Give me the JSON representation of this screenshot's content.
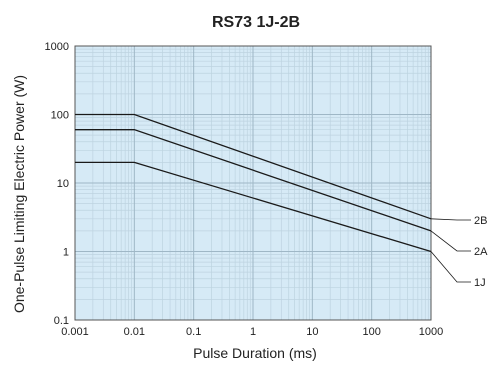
{
  "chart_data": {
    "type": "line",
    "title": "RS73 1J-2B",
    "xlabel": "Pulse Duration (ms)",
    "ylabel": "One-Pulse Limiting Electric Power (W)",
    "x_scale": "log",
    "y_scale": "log",
    "xlim": [
      0.001,
      1000
    ],
    "ylim": [
      0.1,
      1000
    ],
    "x_ticks": [
      0.001,
      0.01,
      0.1,
      1,
      10,
      100,
      1000
    ],
    "x_tick_labels": [
      "0.001",
      "0.01",
      "0.1",
      "1",
      "10",
      "100",
      "1000"
    ],
    "y_ticks": [
      0.1,
      1,
      10,
      100,
      1000
    ],
    "y_tick_labels": [
      "0.1",
      "1",
      "10",
      "100",
      "1000"
    ],
    "grid": true,
    "legend": "callout-right",
    "colors": {
      "plot_background": "#d6eaf6",
      "grid_major": "#9fb7c6",
      "grid_minor": "#bdd3e0",
      "series_line": "#1a1a1a",
      "axes": "#555555"
    },
    "series": [
      {
        "name": "2B",
        "x": [
          0.001,
          0.01,
          1000
        ],
        "y": [
          100,
          100,
          3
        ]
      },
      {
        "name": "2A",
        "x": [
          0.001,
          0.01,
          1000
        ],
        "y": [
          60,
          60,
          2
        ]
      },
      {
        "name": "1J",
        "x": [
          0.001,
          0.01,
          1000
        ],
        "y": [
          20,
          20,
          1
        ]
      }
    ]
  }
}
